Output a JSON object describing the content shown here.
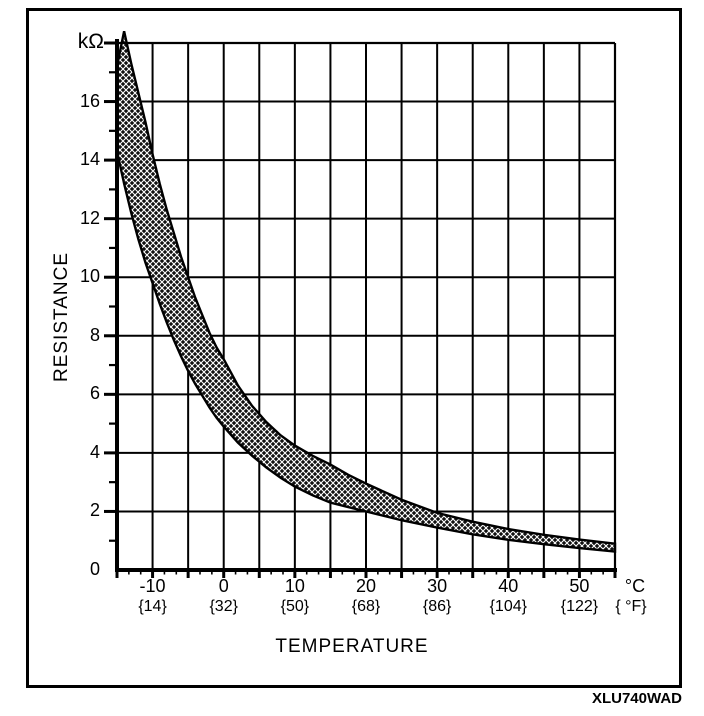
{
  "figure": {
    "code": "XLU740WAD"
  },
  "y_axis": {
    "unit": "kΩ",
    "title": "RESISTANCE"
  },
  "x_axis": {
    "title": "TEMPERATURE",
    "unit_primary": "°C",
    "unit_secondary": "{ °F}"
  },
  "colors": {
    "ink": "#000000",
    "background": "#ffffff",
    "band_fill": "#111111",
    "band_hatch": "#ffffff"
  },
  "chart_data": {
    "type": "area",
    "title": "",
    "xlabel": "TEMPERATURE",
    "ylabel": "RESISTANCE",
    "y_unit": "kΩ",
    "x_unit": "°C",
    "x_unit_secondary": "°F",
    "xlim": [
      -15,
      55
    ],
    "ylim": [
      0,
      18
    ],
    "x_grid_step": 5,
    "y_grid_step": 2,
    "y_minor_step": 1,
    "grid": true,
    "legend": false,
    "x_ticks": [
      {
        "c": "-10",
        "f": "{14}",
        "t": -10
      },
      {
        "c": "0",
        "f": "{32}",
        "t": 0
      },
      {
        "c": "10",
        "f": "{50}",
        "t": 10
      },
      {
        "c": "20",
        "f": "{68}",
        "t": 20
      },
      {
        "c": "30",
        "f": "{86}",
        "t": 30
      },
      {
        "c": "40",
        "f": "{104}",
        "t": 40
      },
      {
        "c": "50",
        "f": "{122}",
        "t": 50
      }
    ],
    "y_ticks": [
      {
        "label": "16",
        "r": 16
      },
      {
        "label": "14",
        "r": 14
      },
      {
        "label": "12",
        "r": 12
      },
      {
        "label": "10",
        "r": 10
      },
      {
        "label": "8",
        "r": 8
      },
      {
        "label": "6",
        "r": 6
      },
      {
        "label": "4",
        "r": 4
      },
      {
        "label": "2",
        "r": 2
      },
      {
        "label": "0",
        "r": 0
      }
    ],
    "series": [
      {
        "name": "upper resistance limit",
        "x": [
          -15,
          -14,
          -13,
          -12,
          -11,
          -10,
          -9,
          -8,
          -7,
          -6,
          -5,
          -4,
          -3,
          -2,
          -1,
          0,
          2,
          4,
          6,
          8,
          10,
          12.5,
          15,
          17.5,
          20,
          25,
          30,
          35,
          40,
          45,
          50,
          55
        ],
        "y": [
          17.2,
          18.4,
          17.3,
          16.3,
          15.3,
          14.2,
          13.2,
          12.3,
          11.5,
          10.7,
          10.0,
          9.3,
          8.7,
          8.1,
          7.6,
          7.2,
          6.3,
          5.6,
          5.05,
          4.6,
          4.25,
          3.9,
          3.6,
          3.25,
          2.95,
          2.4,
          1.95,
          1.65,
          1.4,
          1.2,
          1.04,
          0.9
        ]
      },
      {
        "name": "lower resistance limit",
        "x": [
          -15,
          -14,
          -13,
          -12,
          -11,
          -10,
          -9,
          -8,
          -7,
          -6,
          -5,
          -4,
          -3,
          -2,
          -1,
          0,
          2,
          4,
          6,
          8,
          10,
          12.5,
          15,
          17.5,
          20,
          25,
          30,
          35,
          40,
          45,
          50,
          55
        ],
        "y": [
          14.3,
          13.2,
          12.2,
          11.3,
          10.5,
          9.8,
          9.1,
          8.45,
          7.85,
          7.3,
          6.8,
          6.35,
          5.95,
          5.55,
          5.2,
          4.9,
          4.35,
          3.9,
          3.5,
          3.15,
          2.85,
          2.55,
          2.3,
          2.15,
          2.0,
          1.7,
          1.45,
          1.22,
          1.03,
          0.88,
          0.75,
          0.63
        ]
      }
    ]
  }
}
